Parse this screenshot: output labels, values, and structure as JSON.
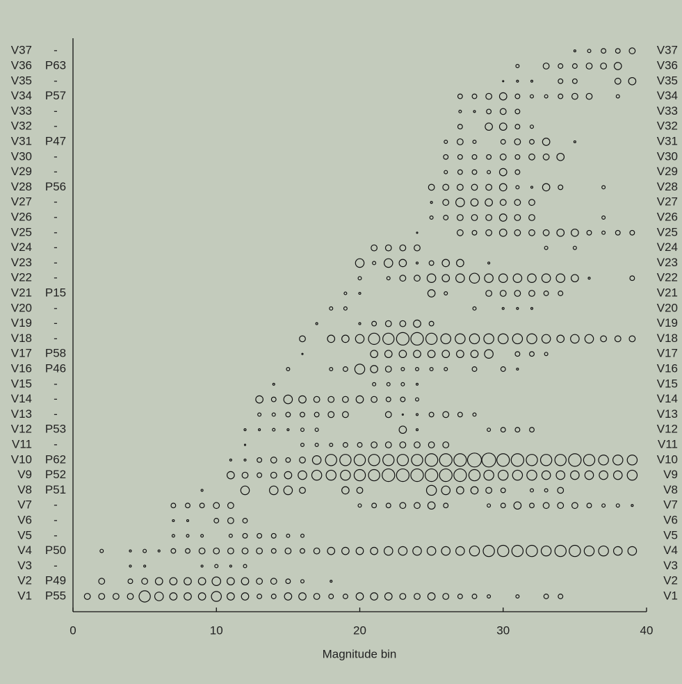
{
  "chart_data": {
    "type": "bubble",
    "xlabel": "Magnitude bin",
    "xlim": [
      0,
      40
    ],
    "xticks": [
      0,
      10,
      20,
      30,
      40
    ],
    "rows": [
      {
        "name": "V1",
        "code": "P55",
        "x": [
          1,
          2,
          3,
          4,
          5,
          6,
          7,
          8,
          9,
          10,
          11,
          12,
          13,
          14,
          15,
          16,
          17,
          18,
          19,
          20,
          21,
          22,
          23,
          24,
          25,
          26,
          27,
          28,
          29,
          31,
          33,
          34
        ],
        "size": [
          4,
          4,
          4,
          4,
          8,
          6,
          5,
          5,
          5,
          7,
          5,
          5,
          3,
          3,
          5,
          5,
          4,
          3,
          3,
          5,
          5,
          5,
          4,
          4,
          5,
          4,
          3,
          3,
          2,
          2,
          3,
          3
        ]
      },
      {
        "name": "V2",
        "code": "P49",
        "x": [
          2,
          4,
          5,
          6,
          7,
          8,
          9,
          10,
          11,
          12,
          13,
          14,
          15,
          16,
          18
        ],
        "size": [
          4,
          3,
          4,
          5,
          5,
          5,
          5,
          6,
          5,
          5,
          4,
          4,
          3,
          2,
          1
        ]
      },
      {
        "name": "V3",
        "code": "-",
        "x": [
          4,
          5,
          9,
          10,
          11,
          12
        ],
        "size": [
          1,
          1,
          1,
          2,
          1,
          2
        ]
      },
      {
        "name": "V4",
        "code": "P50",
        "x": [
          2,
          4,
          5,
          6,
          7,
          8,
          9,
          10,
          11,
          12,
          13,
          14,
          15,
          16,
          17,
          18,
          19,
          20,
          21,
          22,
          23,
          24,
          25,
          26,
          27,
          28,
          29,
          30,
          31,
          32,
          33,
          34,
          35,
          36,
          37,
          38,
          39
        ],
        "size": [
          2,
          1,
          2,
          1,
          3,
          3,
          4,
          4,
          4,
          4,
          4,
          3,
          4,
          3,
          4,
          5,
          5,
          5,
          5,
          6,
          6,
          6,
          6,
          6,
          6,
          7,
          8,
          8,
          8,
          8,
          7,
          8,
          8,
          7,
          7,
          6,
          6
        ]
      },
      {
        "name": "V5",
        "code": "-",
        "x": [
          7,
          8,
          9,
          11,
          12,
          13,
          14,
          15,
          16
        ],
        "size": [
          1.5,
          1.5,
          1.5,
          2,
          3,
          3,
          3,
          2,
          2
        ]
      },
      {
        "name": "V6",
        "code": "-",
        "x": [
          7,
          8,
          10,
          11,
          12
        ],
        "size": [
          1,
          1,
          3,
          4,
          3
        ]
      },
      {
        "name": "V7",
        "code": "-",
        "x": [
          7,
          8,
          9,
          10,
          11,
          20,
          21,
          22,
          23,
          24,
          25,
          26,
          29,
          30,
          31,
          32,
          33,
          34,
          35,
          36,
          37,
          38,
          39
        ],
        "size": [
          3,
          3,
          3,
          4,
          4,
          2,
          3,
          3,
          4,
          4,
          5,
          3,
          2,
          3,
          5,
          3,
          4,
          4,
          4,
          3,
          2,
          2,
          1
        ]
      },
      {
        "name": "V8",
        "code": "P51",
        "x": [
          9,
          12,
          14,
          15,
          16,
          19,
          20,
          25,
          26,
          27,
          28,
          29,
          30,
          32,
          33,
          34
        ],
        "size": [
          1,
          6,
          6,
          6,
          4,
          5,
          4,
          7,
          6,
          5,
          5,
          4,
          3,
          2,
          2,
          4
        ]
      },
      {
        "name": "V9",
        "code": "P52",
        "x": [
          11,
          12,
          13,
          14,
          15,
          16,
          17,
          18,
          19,
          20,
          21,
          22,
          23,
          24,
          25,
          26,
          27,
          28,
          29,
          30,
          31,
          32,
          33,
          34,
          35,
          36,
          37,
          38,
          39
        ],
        "size": [
          5,
          4,
          3,
          4,
          5,
          6,
          7,
          7,
          7,
          8,
          8,
          9,
          9,
          9,
          9,
          9,
          9,
          8,
          7,
          7,
          7,
          7,
          6,
          6,
          6,
          6,
          6,
          6,
          7
        ]
      },
      {
        "name": "V10",
        "code": "P62",
        "x": [
          11,
          12,
          13,
          14,
          15,
          16,
          17,
          18,
          19,
          20,
          21,
          22,
          23,
          24,
          25,
          26,
          27,
          28,
          29,
          30,
          31,
          32,
          33,
          34,
          35,
          36,
          37,
          38,
          39
        ],
        "size": [
          1,
          1,
          3,
          4,
          3,
          4,
          6,
          8,
          8,
          8,
          8,
          8,
          8,
          8,
          9,
          9,
          9,
          10,
          10,
          9,
          9,
          8,
          8,
          8,
          9,
          8,
          7,
          7,
          7
        ]
      },
      {
        "name": "V11",
        "code": "-",
        "x": [
          12,
          16,
          17,
          18,
          19,
          20,
          21,
          22,
          23,
          24,
          25,
          26
        ],
        "size": [
          0.5,
          2,
          2,
          2,
          3,
          3,
          4,
          4,
          4,
          4,
          4,
          4
        ]
      },
      {
        "name": "V12",
        "code": "P53",
        "x": [
          12,
          13,
          14,
          15,
          16,
          17,
          23,
          24,
          29,
          30,
          31,
          32
        ],
        "size": [
          1,
          1,
          1.5,
          1,
          2,
          2,
          5,
          1,
          2,
          3,
          3,
          3
        ]
      },
      {
        "name": "V13",
        "code": "-",
        "x": [
          13,
          14,
          15,
          16,
          17,
          18,
          19,
          22,
          23,
          24,
          25,
          26,
          27,
          28
        ],
        "size": [
          2,
          2,
          3,
          3,
          3,
          4,
          4,
          4,
          0.5,
          1,
          3,
          4,
          3,
          2
        ]
      },
      {
        "name": "V14",
        "code": "-",
        "x": [
          13,
          14,
          15,
          16,
          17,
          18,
          19,
          20,
          21,
          22,
          23,
          24
        ],
        "size": [
          5,
          3,
          6,
          5,
          4,
          4,
          4,
          5,
          4,
          3,
          3,
          2
        ]
      },
      {
        "name": "V15",
        "code": "-",
        "x": [
          14,
          21,
          22,
          23,
          24
        ],
        "size": [
          1,
          2,
          2,
          2,
          1
        ]
      },
      {
        "name": "V16",
        "code": "P46",
        "x": [
          15,
          18,
          19,
          20,
          21,
          22,
          23,
          24,
          25,
          26,
          28,
          30,
          31
        ],
        "size": [
          2,
          2,
          3,
          7,
          5,
          4,
          2,
          2,
          2,
          2,
          3,
          3,
          1
        ]
      },
      {
        "name": "V17",
        "code": "P58",
        "x": [
          16,
          21,
          22,
          23,
          24,
          25,
          26,
          27,
          28,
          29,
          31,
          32,
          33
        ],
        "size": [
          0.5,
          5,
          5,
          5,
          5,
          5,
          5,
          5,
          5,
          6,
          3,
          3,
          2
        ]
      },
      {
        "name": "V18",
        "code": "-",
        "x": [
          16,
          18,
          19,
          20,
          21,
          22,
          23,
          24,
          25,
          26,
          27,
          28,
          29,
          30,
          31,
          32,
          33,
          34,
          35,
          36,
          37,
          38,
          39
        ],
        "size": [
          4,
          5,
          5,
          6,
          8,
          8,
          9,
          9,
          8,
          7,
          7,
          7,
          7,
          7,
          7,
          7,
          6,
          5,
          6,
          6,
          4,
          4,
          4
        ]
      },
      {
        "name": "V19",
        "code": "-",
        "x": [
          17,
          20,
          21,
          22,
          23,
          24,
          25
        ],
        "size": [
          1,
          1,
          3,
          4,
          4,
          5,
          3
        ]
      },
      {
        "name": "V20",
        "code": "-",
        "x": [
          18,
          19,
          28,
          30,
          31,
          32
        ],
        "size": [
          2,
          2,
          2,
          1,
          1,
          1
        ]
      },
      {
        "name": "V21",
        "code": "P15",
        "x": [
          19,
          20,
          25,
          26,
          29,
          30,
          31,
          32,
          33,
          34
        ],
        "size": [
          1.5,
          1,
          5,
          2,
          4,
          4,
          4,
          4,
          3,
          3
        ]
      },
      {
        "name": "V22",
        "code": "-",
        "x": [
          20,
          22,
          23,
          24,
          25,
          26,
          27,
          28,
          29,
          30,
          31,
          32,
          33,
          34,
          35,
          36,
          39
        ],
        "size": [
          2,
          2,
          4,
          4,
          6,
          5,
          6,
          7,
          6,
          6,
          6,
          6,
          6,
          6,
          5,
          1,
          3
        ]
      },
      {
        "name": "V23",
        "code": "-",
        "x": [
          20,
          21,
          22,
          23,
          24,
          25,
          26,
          27,
          29
        ],
        "size": [
          6,
          2,
          6,
          5,
          1,
          3,
          5,
          5,
          1
        ]
      },
      {
        "name": "V24",
        "code": "-",
        "x": [
          21,
          22,
          23,
          24,
          33,
          35
        ],
        "size": [
          4,
          4,
          4,
          4,
          2,
          2
        ]
      },
      {
        "name": "V25",
        "code": "-",
        "x": [
          24,
          27,
          28,
          29,
          30,
          31,
          32,
          33,
          34,
          35,
          36,
          37,
          38,
          39
        ],
        "size": [
          0.5,
          4,
          3,
          4,
          5,
          4,
          4,
          4,
          5,
          5,
          3,
          2,
          3,
          3
        ]
      },
      {
        "name": "V26",
        "code": "-",
        "x": [
          25,
          26,
          27,
          28,
          29,
          30,
          31,
          32,
          37
        ],
        "size": [
          2,
          3,
          4,
          4,
          4,
          5,
          4,
          4,
          2
        ]
      },
      {
        "name": "V27",
        "code": "-",
        "x": [
          25,
          26,
          27,
          28,
          29,
          30,
          31,
          32
        ],
        "size": [
          1,
          4,
          6,
          5,
          5,
          4,
          4,
          4
        ]
      },
      {
        "name": "V28",
        "code": "P56",
        "x": [
          25,
          26,
          27,
          28,
          29,
          30,
          31,
          32,
          33,
          34,
          37
        ],
        "size": [
          4,
          4,
          4,
          4,
          4,
          5,
          2,
          1,
          5,
          3,
          2
        ]
      },
      {
        "name": "V29",
        "code": "-",
        "x": [
          26,
          27,
          28,
          29,
          30,
          31
        ],
        "size": [
          2,
          3,
          3,
          2,
          5,
          3
        ]
      },
      {
        "name": "V30",
        "code": "-",
        "x": [
          26,
          27,
          28,
          29,
          30,
          31,
          32,
          33,
          34
        ],
        "size": [
          3,
          3,
          3,
          3,
          4,
          3,
          4,
          4,
          5
        ]
      },
      {
        "name": "V31",
        "code": "P47",
        "x": [
          26,
          27,
          28,
          30,
          31,
          32,
          33,
          35
        ],
        "size": [
          2,
          4,
          2,
          3,
          4,
          3,
          5,
          1
        ]
      },
      {
        "name": "V32",
        "code": "-",
        "x": [
          27,
          29,
          30,
          31,
          32
        ],
        "size": [
          3,
          5,
          5,
          3,
          2
        ]
      },
      {
        "name": "V33",
        "code": "-",
        "x": [
          27,
          28,
          29,
          30,
          31
        ],
        "size": [
          1.5,
          1,
          3,
          4,
          3
        ]
      },
      {
        "name": "V34",
        "code": "P57",
        "x": [
          27,
          28,
          29,
          30,
          31,
          32,
          33,
          34,
          35,
          36,
          38
        ],
        "size": [
          3,
          3,
          4,
          5,
          3,
          2,
          2,
          3,
          4,
          4,
          2
        ]
      },
      {
        "name": "V35",
        "code": "-",
        "x": [
          30,
          31,
          32,
          34,
          35,
          38,
          39
        ],
        "size": [
          0.5,
          1,
          1,
          3,
          3,
          4,
          5
        ]
      },
      {
        "name": "V36",
        "code": "P63",
        "x": [
          31,
          33,
          34,
          35,
          36,
          37,
          38
        ],
        "size": [
          2,
          4,
          3,
          3,
          4,
          4,
          5
        ]
      },
      {
        "name": "V37",
        "code": "-",
        "x": [
          35,
          36,
          37,
          38,
          39
        ],
        "size": [
          1,
          2,
          3,
          3,
          4
        ]
      }
    ]
  }
}
